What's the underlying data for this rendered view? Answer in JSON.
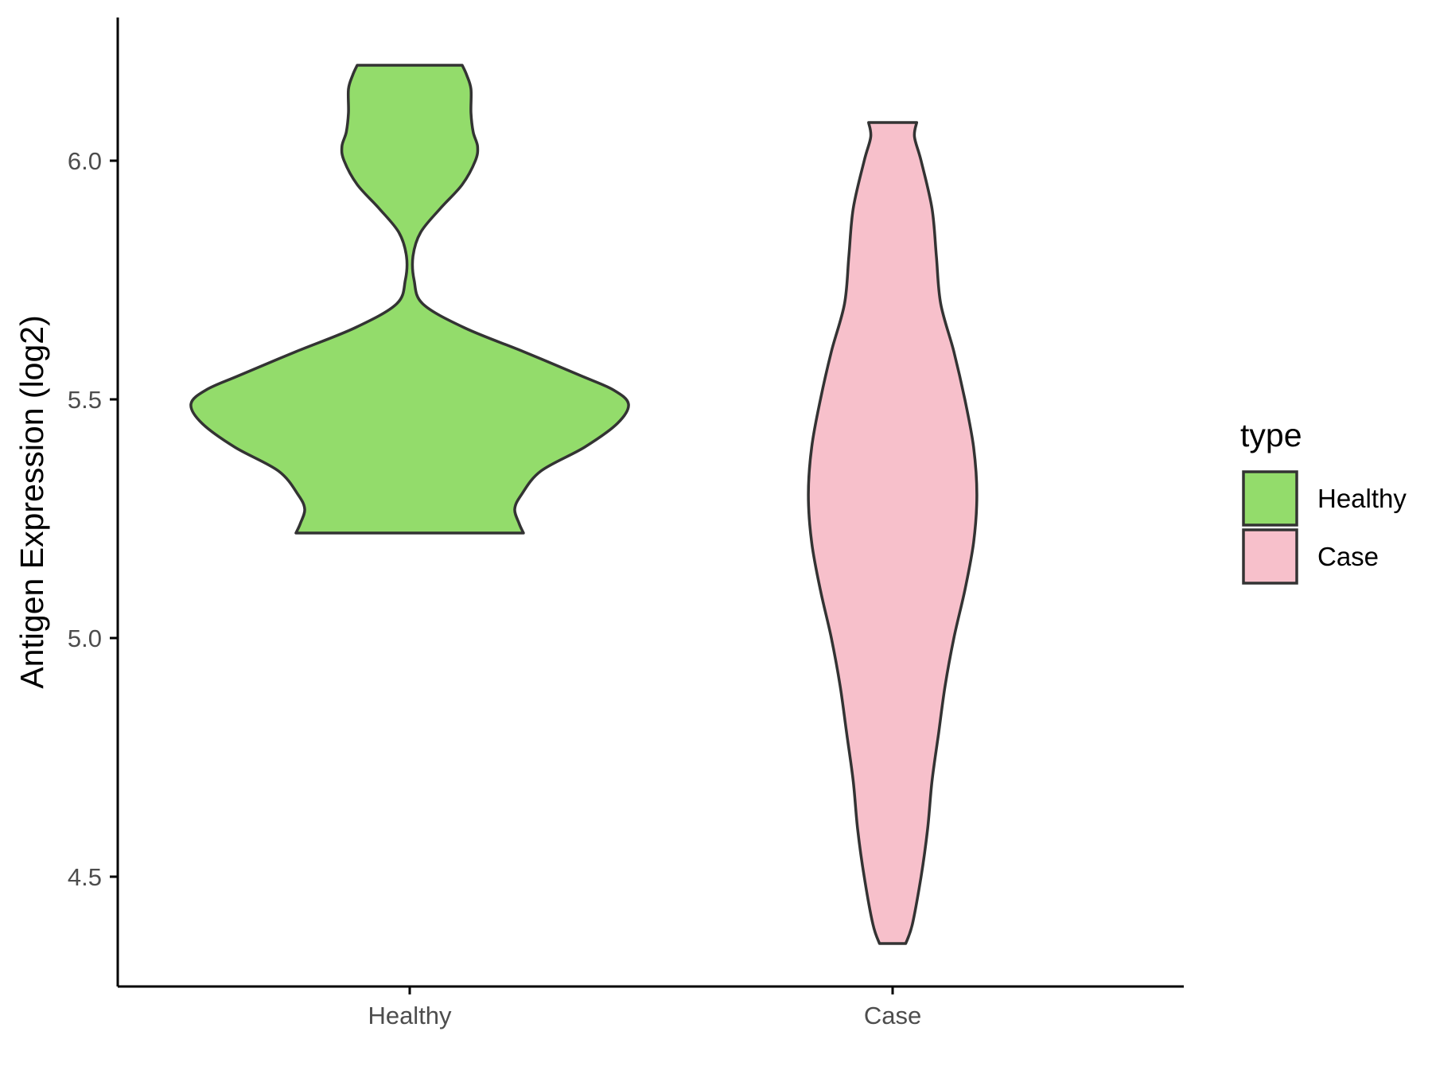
{
  "chart_data": {
    "type": "violin",
    "title": "",
    "xlabel": "",
    "ylabel": "Antigen Expression (log2)",
    "categories": [
      "Healthy",
      "Case"
    ],
    "ylim": [
      4.3,
      6.3
    ],
    "yticks": [
      4.5,
      5.0,
      5.5,
      6.0
    ],
    "ytick_labels": [
      "4.5",
      "5.0",
      "5.5",
      "6.0"
    ],
    "grid": false,
    "legend": {
      "title": "type",
      "placement": "right",
      "entries": [
        {
          "label": "Healthy",
          "color": "#93DC6B"
        },
        {
          "label": "Case",
          "color": "#F7C0CB"
        }
      ]
    },
    "series": [
      {
        "name": "Healthy",
        "color": "#93DC6B",
        "range": [
          5.22,
          6.2
        ],
        "density_profile": [
          [
            5.22,
            0.52
          ],
          [
            5.24,
            0.5
          ],
          [
            5.27,
            0.48
          ],
          [
            5.3,
            0.51
          ],
          [
            5.35,
            0.6
          ],
          [
            5.4,
            0.8
          ],
          [
            5.45,
            0.95
          ],
          [
            5.49,
            1.0
          ],
          [
            5.52,
            0.93
          ],
          [
            5.55,
            0.78
          ],
          [
            5.6,
            0.52
          ],
          [
            5.65,
            0.25
          ],
          [
            5.7,
            0.06
          ],
          [
            5.75,
            0.02
          ],
          [
            5.8,
            0.015
          ],
          [
            5.85,
            0.05
          ],
          [
            5.9,
            0.14
          ],
          [
            5.95,
            0.24
          ],
          [
            6.0,
            0.3
          ],
          [
            6.03,
            0.31
          ],
          [
            6.06,
            0.29
          ],
          [
            6.1,
            0.28
          ],
          [
            6.15,
            0.28
          ],
          [
            6.18,
            0.26
          ],
          [
            6.2,
            0.24
          ]
        ]
      },
      {
        "name": "Case",
        "color": "#F7C0CB",
        "range": [
          4.36,
          6.08
        ],
        "density_profile": [
          [
            4.36,
            0.06
          ],
          [
            4.4,
            0.09
          ],
          [
            4.5,
            0.13
          ],
          [
            4.6,
            0.16
          ],
          [
            4.7,
            0.18
          ],
          [
            4.8,
            0.21
          ],
          [
            4.9,
            0.24
          ],
          [
            5.0,
            0.28
          ],
          [
            5.1,
            0.33
          ],
          [
            5.2,
            0.37
          ],
          [
            5.3,
            0.385
          ],
          [
            5.4,
            0.37
          ],
          [
            5.5,
            0.33
          ],
          [
            5.6,
            0.28
          ],
          [
            5.7,
            0.22
          ],
          [
            5.8,
            0.2
          ],
          [
            5.9,
            0.18
          ],
          [
            6.0,
            0.13
          ],
          [
            6.05,
            0.1
          ],
          [
            6.08,
            0.11
          ]
        ]
      }
    ]
  }
}
